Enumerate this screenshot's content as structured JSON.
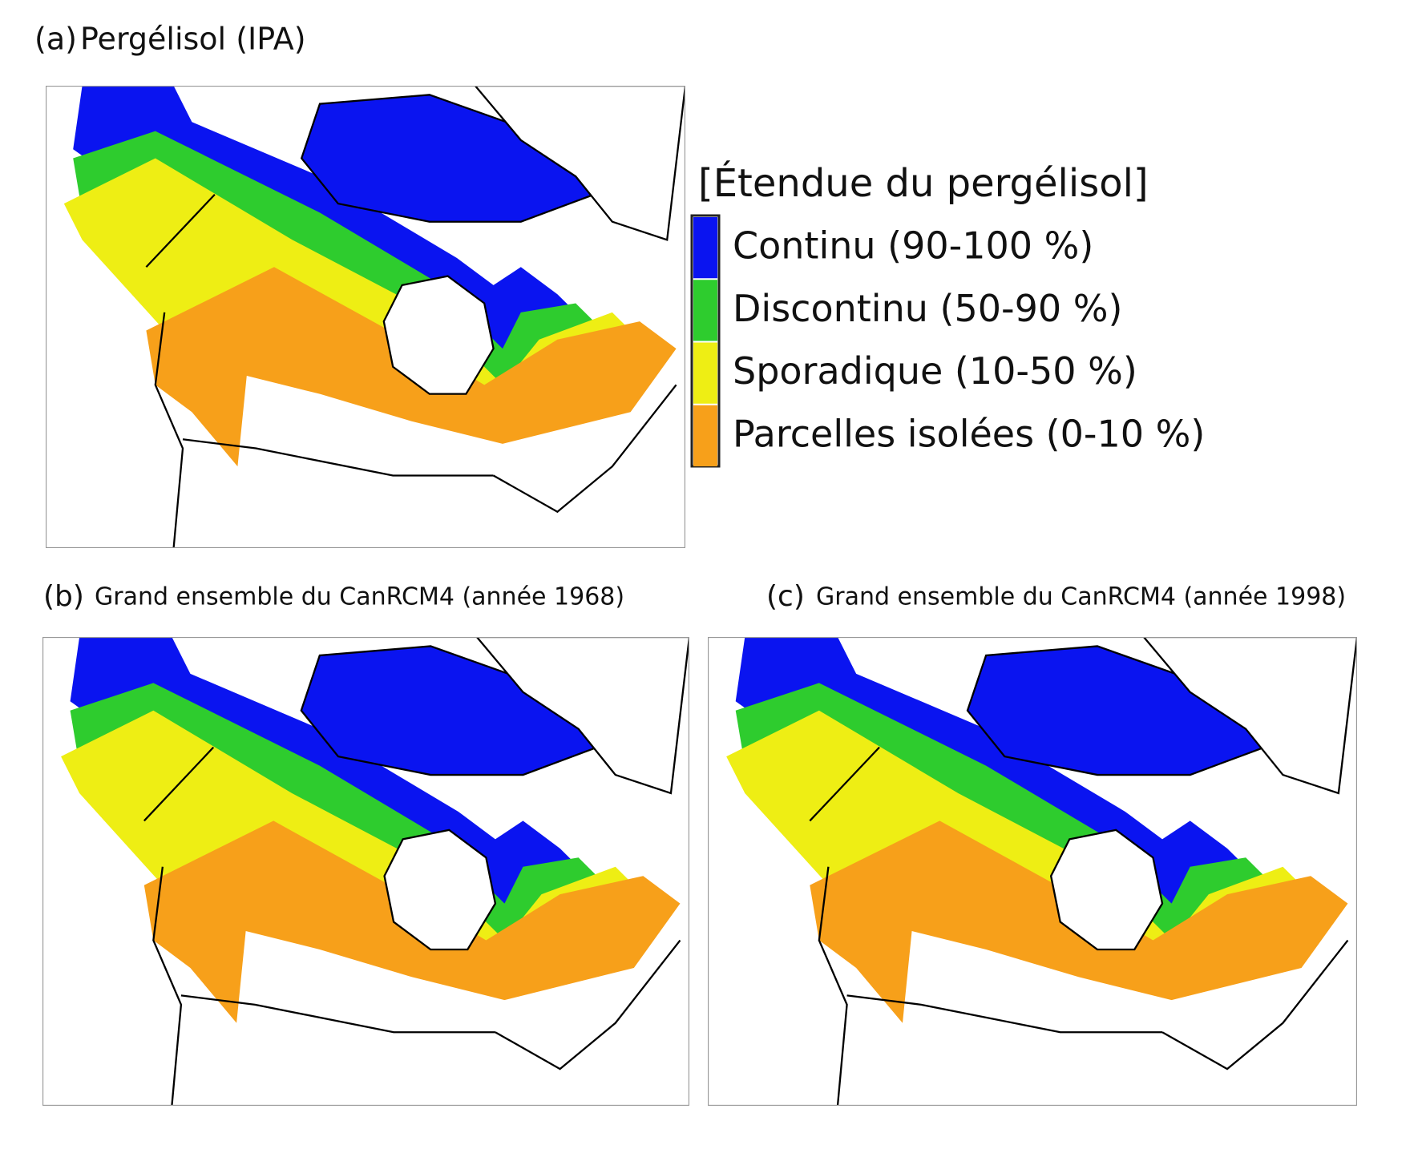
{
  "panels": [
    {
      "letter": "(a)",
      "title": "Pergélisol (IPA)"
    },
    {
      "letter": "(b)",
      "title": "Grand ensemble du CanRCM4 (année 1968)"
    },
    {
      "letter": "(c)",
      "title": "Grand ensemble du CanRCM4 (année 1998)"
    }
  ],
  "legend": {
    "title": "[Étendue du pergélisol]",
    "items": [
      {
        "label": "Continu (90-100 %)",
        "color": "#0a14f0"
      },
      {
        "label": "Discontinu (50-90 %)",
        "color": "#2ecc2e"
      },
      {
        "label": "Sporadique (10-50 %)",
        "color": "#eeee14"
      },
      {
        "label": "Parcelles isolées (0-10 %)",
        "color": "#f7a01a"
      }
    ]
  }
}
